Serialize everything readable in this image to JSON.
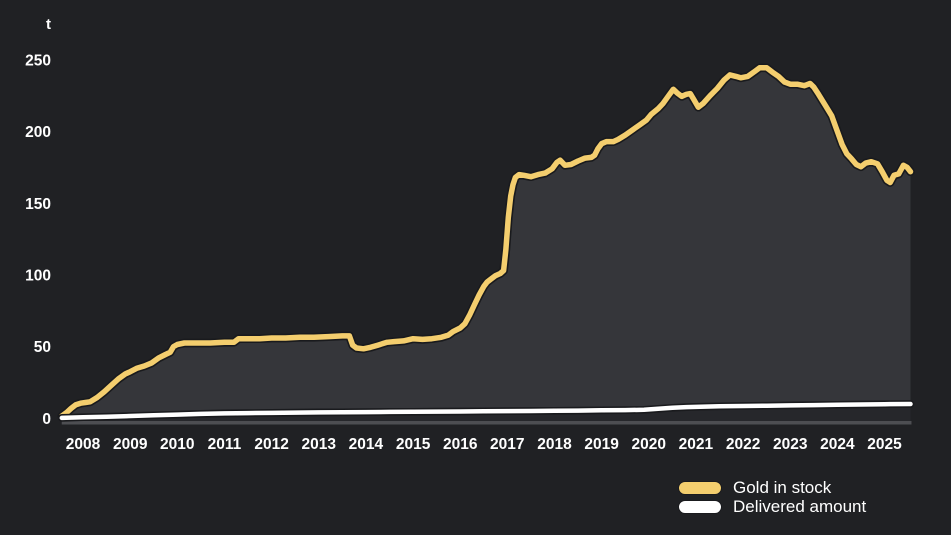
{
  "page": {
    "background_color": "#202124"
  },
  "unit_label": "t",
  "legend": [
    {
      "label": "Gold in stock",
      "color": "#F4CE6E"
    },
    {
      "label": "Delivered amount",
      "color": "#FFFFFF"
    }
  ],
  "chart_data": {
    "type": "area",
    "title": "",
    "xlabel": "",
    "ylabel": "t",
    "unit": "tonnes",
    "ylim": [
      0,
      250
    ],
    "y_ticks": [
      0,
      50,
      100,
      150,
      200,
      250
    ],
    "x_ticks": [
      2008,
      2009,
      2010,
      2011,
      2012,
      2013,
      2014,
      2015,
      2016,
      2017,
      2018,
      2019,
      2020,
      2021,
      2022,
      2023,
      2024,
      2025
    ],
    "x_range": [
      2007.55,
      2025.55
    ],
    "grid": false,
    "legend_position": "bottom-right",
    "colors": {
      "background": "#202124",
      "gold_line": "#F4CE6E",
      "gold_area_fill": "#35363A",
      "delivered_line": "#FFFFFF",
      "delivered_area_fill": "#26272B",
      "axis_baseline": "#4D4E52",
      "line_outline": "#191A1D",
      "tick_text": "#FFFFFF"
    },
    "series": [
      {
        "name": "Gold in stock",
        "color": "#F4CE6E",
        "fill": "#35363A",
        "points": [
          [
            2007.55,
            1.5
          ],
          [
            2007.65,
            4
          ],
          [
            2007.75,
            7
          ],
          [
            2007.85,
            9.5
          ],
          [
            2007.95,
            10.5
          ],
          [
            2008.05,
            11
          ],
          [
            2008.15,
            11.5
          ],
          [
            2008.3,
            14.5
          ],
          [
            2008.45,
            18.5
          ],
          [
            2008.6,
            23
          ],
          [
            2008.75,
            27.5
          ],
          [
            2008.9,
            31
          ],
          [
            2009.0,
            32.5
          ],
          [
            2009.15,
            35
          ],
          [
            2009.3,
            36.5
          ],
          [
            2009.45,
            38.5
          ],
          [
            2009.6,
            42
          ],
          [
            2009.75,
            44.5
          ],
          [
            2009.85,
            46
          ],
          [
            2009.92,
            50
          ],
          [
            2010.0,
            51.5
          ],
          [
            2010.15,
            52.5
          ],
          [
            2010.4,
            52.5
          ],
          [
            2010.7,
            52.5
          ],
          [
            2011.0,
            53
          ],
          [
            2011.2,
            53
          ],
          [
            2011.3,
            55.5
          ],
          [
            2011.5,
            55.5
          ],
          [
            2011.75,
            55.5
          ],
          [
            2012.0,
            56
          ],
          [
            2012.3,
            56
          ],
          [
            2012.6,
            56.5
          ],
          [
            2012.9,
            56.5
          ],
          [
            2013.2,
            57
          ],
          [
            2013.5,
            57.5
          ],
          [
            2013.65,
            57.5
          ],
          [
            2013.72,
            51
          ],
          [
            2013.8,
            49
          ],
          [
            2013.95,
            48.5
          ],
          [
            2014.1,
            49.5
          ],
          [
            2014.25,
            51
          ],
          [
            2014.45,
            53
          ],
          [
            2014.6,
            53.5
          ],
          [
            2014.8,
            54
          ],
          [
            2015.0,
            55.5
          ],
          [
            2015.2,
            55
          ],
          [
            2015.4,
            55.5
          ],
          [
            2015.6,
            56.5
          ],
          [
            2015.75,
            58
          ],
          [
            2015.85,
            60.5
          ],
          [
            2016.0,
            63
          ],
          [
            2016.1,
            66
          ],
          [
            2016.2,
            72
          ],
          [
            2016.3,
            79
          ],
          [
            2016.4,
            86
          ],
          [
            2016.5,
            92
          ],
          [
            2016.57,
            95
          ],
          [
            2016.65,
            97
          ],
          [
            2016.75,
            99.5
          ],
          [
            2016.85,
            101
          ],
          [
            2016.92,
            103
          ],
          [
            2016.97,
            118
          ],
          [
            2017.02,
            140
          ],
          [
            2017.07,
            155
          ],
          [
            2017.12,
            163
          ],
          [
            2017.17,
            168
          ],
          [
            2017.25,
            170
          ],
          [
            2017.35,
            169.5
          ],
          [
            2017.5,
            168.5
          ],
          [
            2017.65,
            170
          ],
          [
            2017.8,
            171
          ],
          [
            2017.95,
            174
          ],
          [
            2018.05,
            178.5
          ],
          [
            2018.12,
            180
          ],
          [
            2018.22,
            176.5
          ],
          [
            2018.35,
            177
          ],
          [
            2018.5,
            179.5
          ],
          [
            2018.65,
            181.5
          ],
          [
            2018.78,
            182
          ],
          [
            2018.85,
            183.5
          ],
          [
            2018.92,
            188
          ],
          [
            2019.0,
            191.5
          ],
          [
            2019.1,
            193
          ],
          [
            2019.25,
            193
          ],
          [
            2019.35,
            194.5
          ],
          [
            2019.5,
            197.5
          ],
          [
            2019.65,
            201
          ],
          [
            2019.8,
            204.5
          ],
          [
            2019.95,
            208
          ],
          [
            2020.05,
            212
          ],
          [
            2020.2,
            216
          ],
          [
            2020.3,
            219.5
          ],
          [
            2020.42,
            225
          ],
          [
            2020.52,
            229.5
          ],
          [
            2020.6,
            227
          ],
          [
            2020.7,
            224.5
          ],
          [
            2020.8,
            226
          ],
          [
            2020.88,
            226.5
          ],
          [
            2020.96,
            222
          ],
          [
            2021.05,
            217
          ],
          [
            2021.15,
            219.5
          ],
          [
            2021.3,
            225
          ],
          [
            2021.45,
            230
          ],
          [
            2021.6,
            236
          ],
          [
            2021.72,
            239.5
          ],
          [
            2021.85,
            238.5
          ],
          [
            2021.95,
            237.5
          ],
          [
            2022.1,
            238.5
          ],
          [
            2022.25,
            242
          ],
          [
            2022.35,
            244.5
          ],
          [
            2022.5,
            244.5
          ],
          [
            2022.62,
            241.5
          ],
          [
            2022.75,
            238.5
          ],
          [
            2022.88,
            234.5
          ],
          [
            2023.0,
            233
          ],
          [
            2023.15,
            233
          ],
          [
            2023.3,
            232
          ],
          [
            2023.42,
            233.5
          ],
          [
            2023.5,
            231
          ],
          [
            2023.6,
            226
          ],
          [
            2023.75,
            218
          ],
          [
            2023.88,
            211
          ],
          [
            2024.0,
            200
          ],
          [
            2024.1,
            191
          ],
          [
            2024.2,
            184.5
          ],
          [
            2024.3,
            181
          ],
          [
            2024.4,
            177
          ],
          [
            2024.5,
            175.5
          ],
          [
            2024.6,
            178
          ],
          [
            2024.72,
            179
          ],
          [
            2024.85,
            177.5
          ],
          [
            2024.95,
            172
          ],
          [
            2025.05,
            166
          ],
          [
            2025.12,
            164.5
          ],
          [
            2025.2,
            169.5
          ],
          [
            2025.3,
            170.5
          ],
          [
            2025.4,
            176.5
          ],
          [
            2025.48,
            175
          ],
          [
            2025.55,
            172
          ]
        ]
      },
      {
        "name": "Delivered amount",
        "color": "#FFFFFF",
        "fill": "#26272B",
        "points": [
          [
            2007.55,
            0.3
          ],
          [
            2008.0,
            0.8
          ],
          [
            2008.5,
            1.1
          ],
          [
            2009.0,
            1.6
          ],
          [
            2009.5,
            2.1
          ],
          [
            2010.0,
            2.6
          ],
          [
            2010.5,
            3.1
          ],
          [
            2011.0,
            3.4
          ],
          [
            2011.5,
            3.6
          ],
          [
            2012.0,
            3.8
          ],
          [
            2012.5,
            3.95
          ],
          [
            2013.0,
            4.1
          ],
          [
            2013.5,
            4.2
          ],
          [
            2014.0,
            4.35
          ],
          [
            2014.5,
            4.45
          ],
          [
            2015.0,
            4.55
          ],
          [
            2015.5,
            4.65
          ],
          [
            2016.0,
            4.75
          ],
          [
            2016.5,
            4.85
          ],
          [
            2017.0,
            5.0
          ],
          [
            2017.5,
            5.1
          ],
          [
            2018.0,
            5.25
          ],
          [
            2018.5,
            5.4
          ],
          [
            2019.0,
            5.55
          ],
          [
            2019.5,
            5.7
          ],
          [
            2019.9,
            5.9
          ],
          [
            2020.2,
            6.6
          ],
          [
            2020.5,
            7.3
          ],
          [
            2020.8,
            7.8
          ],
          [
            2021.1,
            8.1
          ],
          [
            2021.5,
            8.35
          ],
          [
            2022.0,
            8.6
          ],
          [
            2022.5,
            8.8
          ],
          [
            2023.0,
            9.0
          ],
          [
            2023.5,
            9.2
          ],
          [
            2024.0,
            9.4
          ],
          [
            2024.5,
            9.6
          ],
          [
            2025.0,
            9.8
          ],
          [
            2025.55,
            10.0
          ]
        ]
      }
    ]
  }
}
